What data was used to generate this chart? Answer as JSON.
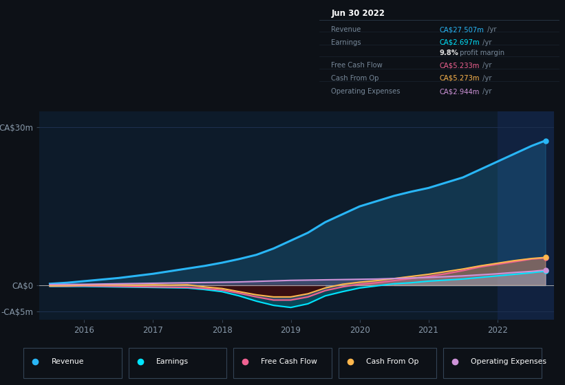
{
  "bg_color": "#0d1117",
  "plot_bg_color": "#0d1b2a",
  "highlight_bg_color": "#112240",
  "grid_color": "#1e3050",
  "title_box": {
    "date": "Jun 30 2022",
    "rows": [
      {
        "label": "Revenue",
        "value": "CA$27.507m",
        "color": "#29b6f6",
        "suffix": "/yr"
      },
      {
        "label": "Earnings",
        "value": "CA$2.697m",
        "color": "#00e5ff",
        "suffix": "/yr"
      },
      {
        "label": "",
        "value": "9.8%",
        "color": "#e0e0e0",
        "suffix": "profit margin",
        "bold_pct": true
      },
      {
        "label": "Free Cash Flow",
        "value": "CA$5.233m",
        "color": "#f06292",
        "suffix": "/yr"
      },
      {
        "label": "Cash From Op",
        "value": "CA$5.273m",
        "color": "#ffb74d",
        "suffix": "/yr"
      },
      {
        "label": "Operating Expenses",
        "value": "CA$2.944m",
        "color": "#ce93d8",
        "suffix": "/yr"
      }
    ]
  },
  "years": [
    2015.5,
    2015.75,
    2016.0,
    2016.25,
    2016.5,
    2016.75,
    2017.0,
    2017.25,
    2017.5,
    2017.75,
    2018.0,
    2018.25,
    2018.5,
    2018.75,
    2019.0,
    2019.25,
    2019.5,
    2019.75,
    2020.0,
    2020.25,
    2020.5,
    2020.75,
    2021.0,
    2021.25,
    2021.5,
    2021.75,
    2022.0,
    2022.25,
    2022.5,
    2022.7
  ],
  "revenue": [
    0.3,
    0.5,
    0.8,
    1.1,
    1.4,
    1.8,
    2.2,
    2.7,
    3.2,
    3.7,
    4.3,
    5.0,
    5.8,
    7.0,
    8.5,
    10.0,
    12.0,
    13.5,
    15.0,
    16.0,
    17.0,
    17.8,
    18.5,
    19.5,
    20.5,
    22.0,
    23.5,
    25.0,
    26.5,
    27.5
  ],
  "earnings": [
    -0.2,
    -0.2,
    -0.2,
    -0.25,
    -0.3,
    -0.35,
    -0.4,
    -0.45,
    -0.5,
    -0.8,
    -1.2,
    -2.0,
    -3.0,
    -3.8,
    -4.2,
    -3.5,
    -2.0,
    -1.2,
    -0.5,
    -0.1,
    0.3,
    0.5,
    0.8,
    1.0,
    1.2,
    1.5,
    1.8,
    2.1,
    2.4,
    2.7
  ],
  "free_cash_flow": [
    -0.15,
    -0.15,
    -0.1,
    -0.15,
    -0.2,
    -0.25,
    -0.3,
    -0.35,
    -0.4,
    -0.6,
    -0.9,
    -1.5,
    -2.2,
    -2.8,
    -2.8,
    -2.2,
    -1.0,
    -0.3,
    0.2,
    0.5,
    0.9,
    1.3,
    1.7,
    2.2,
    2.8,
    3.5,
    4.0,
    4.5,
    5.0,
    5.2
  ],
  "cash_from_op": [
    -0.1,
    -0.05,
    0.05,
    0.1,
    0.1,
    0.05,
    0.1,
    0.05,
    0.1,
    -0.3,
    -0.6,
    -1.2,
    -1.8,
    -2.2,
    -2.2,
    -1.6,
    -0.5,
    0.2,
    0.6,
    0.9,
    1.3,
    1.7,
    2.1,
    2.6,
    3.1,
    3.7,
    4.2,
    4.7,
    5.1,
    5.3
  ],
  "op_expenses": [
    0.15,
    0.18,
    0.2,
    0.25,
    0.3,
    0.35,
    0.4,
    0.45,
    0.5,
    0.55,
    0.6,
    0.65,
    0.75,
    0.85,
    0.95,
    1.0,
    1.05,
    1.1,
    1.15,
    1.2,
    1.3,
    1.4,
    1.5,
    1.65,
    1.8,
    2.0,
    2.2,
    2.45,
    2.65,
    2.9
  ],
  "revenue_color": "#29b6f6",
  "earnings_color": "#00e5ff",
  "fcf_color": "#f06292",
  "cashop_color": "#ffb74d",
  "opex_color": "#ce93d8",
  "highlight_start": 2022.0,
  "xlim": [
    2015.35,
    2022.82
  ],
  "ylim": [
    -6.5,
    33
  ],
  "yticks": [
    -5,
    0,
    30
  ],
  "ytick_labels": [
    "-CA$5m",
    "CA$0",
    "CA$30m"
  ],
  "xticks": [
    2016,
    2017,
    2018,
    2019,
    2020,
    2021,
    2022
  ],
  "legend_entries": [
    {
      "label": "Revenue",
      "color": "#29b6f6"
    },
    {
      "label": "Earnings",
      "color": "#00e5ff"
    },
    {
      "label": "Free Cash Flow",
      "color": "#f06292"
    },
    {
      "label": "Cash From Op",
      "color": "#ffb74d"
    },
    {
      "label": "Operating Expenses",
      "color": "#ce93d8"
    }
  ]
}
